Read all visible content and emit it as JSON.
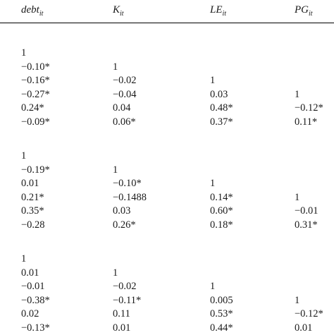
{
  "header": {
    "cols": [
      {
        "base": "debt",
        "sub": "it"
      },
      {
        "base": "K",
        "sub": "it"
      },
      {
        "base": "LE",
        "sub": "it"
      },
      {
        "base": "PG",
        "sub": "it"
      }
    ]
  },
  "blocks": [
    {
      "rows": [
        [
          "1",
          "",
          "",
          ""
        ],
        [
          "−0.10*",
          "1",
          "",
          ""
        ],
        [
          "−0.16*",
          "−0.02",
          "1",
          ""
        ],
        [
          "−0.27*",
          "−0.04",
          "0.03",
          "1"
        ],
        [
          "0.24*",
          "0.04",
          "0.48*",
          "−0.12*"
        ],
        [
          "−0.09*",
          "0.06*",
          "0.37*",
          "0.11*"
        ]
      ]
    },
    {
      "rows": [
        [
          "1",
          "",
          "",
          ""
        ],
        [
          "−0.19*",
          "1",
          "",
          ""
        ],
        [
          "0.01",
          "−0.10*",
          "1",
          ""
        ],
        [
          "0.21*",
          "−0.1488",
          "0.14*",
          "1"
        ],
        [
          "0.35*",
          "0.03",
          "0.60*",
          "−0.01"
        ],
        [
          "−0.28",
          "0.26*",
          "0.18*",
          "0.31*"
        ]
      ]
    },
    {
      "rows": [
        [
          "1",
          "",
          "",
          ""
        ],
        [
          "0.01",
          "1",
          "",
          ""
        ],
        [
          "−0.01",
          "−0.02",
          "1",
          ""
        ],
        [
          "−0.38*",
          "−0.11*",
          "0.005",
          "1"
        ],
        [
          "0.02",
          "0.11",
          "0.53*",
          "−0.12*"
        ],
        [
          "−0.13*",
          "0.01",
          "0.44*",
          "0.01"
        ]
      ]
    }
  ]
}
